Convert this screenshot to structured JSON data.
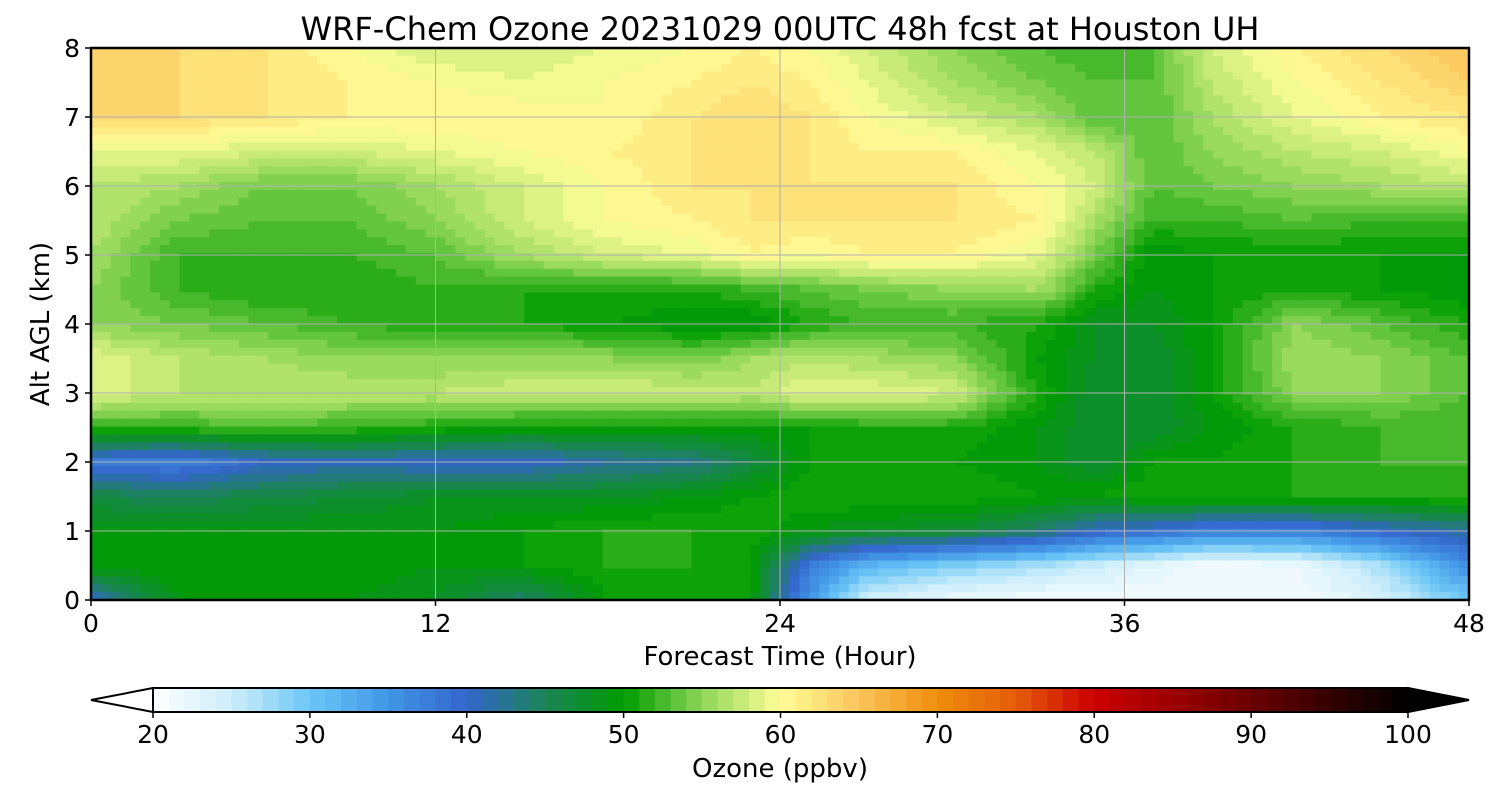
{
  "chart_data": {
    "type": "heatmap",
    "title": "WRF-Chem Ozone  20231029 00UTC 48h fcst at Houston UH",
    "xlabel": "Forecast Time (Hour)",
    "ylabel": "Alt AGL (km)",
    "xlim": [
      0,
      48
    ],
    "ylim": [
      0,
      8
    ],
    "xticks": [
      "0",
      "12",
      "24",
      "36",
      "48"
    ],
    "yticks": [
      "0",
      "1",
      "2",
      "3",
      "4",
      "5",
      "6",
      "7",
      "8"
    ],
    "grid": true,
    "x": [
      0,
      3,
      6,
      9,
      12,
      15,
      18,
      21,
      23,
      25,
      27,
      30,
      33,
      35,
      37,
      39,
      42,
      45,
      48
    ],
    "y": [
      0,
      0.5,
      1,
      1.5,
      2,
      2.5,
      3,
      3.5,
      4,
      4.5,
      5,
      5.5,
      6,
      6.5,
      7,
      7.5,
      8
    ],
    "z": [
      [
        40,
        49,
        49,
        49,
        48,
        44,
        50,
        50,
        50,
        35,
        24,
        22,
        21,
        21,
        21,
        21,
        21,
        24,
        30
      ],
      [
        50,
        50,
        50,
        50,
        49,
        50,
        51,
        51,
        50,
        38,
        32,
        29,
        27,
        25,
        23,
        21,
        22,
        27,
        36
      ],
      [
        49,
        49,
        49,
        49,
        49,
        50,
        51,
        51,
        51,
        49,
        48,
        47,
        44,
        40,
        39,
        37,
        37,
        40,
        42
      ],
      [
        46,
        45,
        46,
        47,
        48,
        48,
        48,
        49,
        50,
        51,
        51,
        51,
        50,
        50,
        51,
        51,
        51,
        51,
        52
      ],
      [
        38,
        37,
        40,
        41,
        40,
        40,
        42,
        43,
        46,
        50,
        50,
        50,
        49,
        47,
        50,
        50,
        51,
        52,
        52
      ],
      [
        52,
        52,
        53,
        52,
        51,
        50,
        50,
        50,
        50,
        50,
        51,
        51,
        49,
        47,
        47,
        49,
        51,
        52,
        52
      ],
      [
        59,
        57,
        57,
        57,
        57,
        58,
        58,
        58,
        57,
        59,
        59,
        58,
        51,
        47,
        47,
        50,
        55,
        55,
        53
      ],
      [
        59,
        57,
        56,
        55,
        55,
        55,
        55,
        54,
        56,
        57,
        56,
        55,
        50,
        48,
        47,
        50,
        56,
        55,
        53
      ],
      [
        55,
        54,
        53,
        52,
        51,
        51,
        50,
        49,
        49,
        51,
        52,
        52,
        51,
        48,
        48,
        50,
        55,
        53,
        51
      ],
      [
        55,
        52,
        51,
        51,
        52,
        51,
        51,
        51,
        52,
        53,
        54,
        55,
        56,
        51,
        49,
        50,
        51,
        50,
        49
      ],
      [
        56,
        52,
        52,
        52,
        53,
        56,
        58,
        59,
        61,
        60,
        61,
        61,
        59,
        54,
        49,
        50,
        50,
        50,
        50
      ],
      [
        57,
        54,
        53,
        53,
        55,
        58,
        60,
        61,
        62,
        62,
        62,
        62,
        61,
        56,
        52,
        52,
        53,
        52,
        52
      ],
      [
        57,
        56,
        54,
        54,
        56,
        58,
        60,
        62,
        62,
        62,
        62,
        62,
        60,
        58,
        53,
        54,
        55,
        56,
        57
      ],
      [
        59,
        59,
        58,
        58,
        59,
        60,
        61,
        62,
        62,
        62,
        61,
        61,
        59,
        57,
        53,
        55,
        57,
        58,
        60
      ],
      [
        63,
        63,
        62,
        61,
        61,
        61,
        60,
        62,
        63,
        62,
        60,
        58,
        56,
        53,
        53,
        56,
        59,
        61,
        62
      ],
      [
        63,
        63,
        62,
        61,
        60,
        59,
        60,
        61,
        62,
        61,
        59,
        56,
        54,
        53,
        53,
        57,
        60,
        62,
        64
      ],
      [
        63,
        63,
        62,
        60,
        58,
        58,
        59,
        60,
        61,
        60,
        58,
        55,
        53,
        52,
        53,
        58,
        61,
        63,
        65
      ]
    ],
    "colorbar": {
      "label": "Ozone  (ppbv)",
      "min": 20,
      "max": 100,
      "ticks": [
        "20",
        "30",
        "40",
        "50",
        "60",
        "70",
        "80",
        "90",
        "100"
      ],
      "extend": "both",
      "stops": [
        [
          20,
          "#ffffff"
        ],
        [
          25,
          "#cdeefa"
        ],
        [
          30,
          "#6cc6f5"
        ],
        [
          35,
          "#4296e6"
        ],
        [
          40,
          "#3465cc"
        ],
        [
          45,
          "#1a8456"
        ],
        [
          50,
          "#009c00"
        ],
        [
          55,
          "#8fd658"
        ],
        [
          60,
          "#fffe98"
        ],
        [
          65,
          "#fbc45a"
        ],
        [
          70,
          "#f08e0c"
        ],
        [
          75,
          "#e45d0a"
        ],
        [
          80,
          "#cc0000"
        ],
        [
          85,
          "#9c0000"
        ],
        [
          90,
          "#6a0000"
        ],
        [
          95,
          "#340000"
        ],
        [
          100,
          "#000000"
        ]
      ]
    }
  }
}
